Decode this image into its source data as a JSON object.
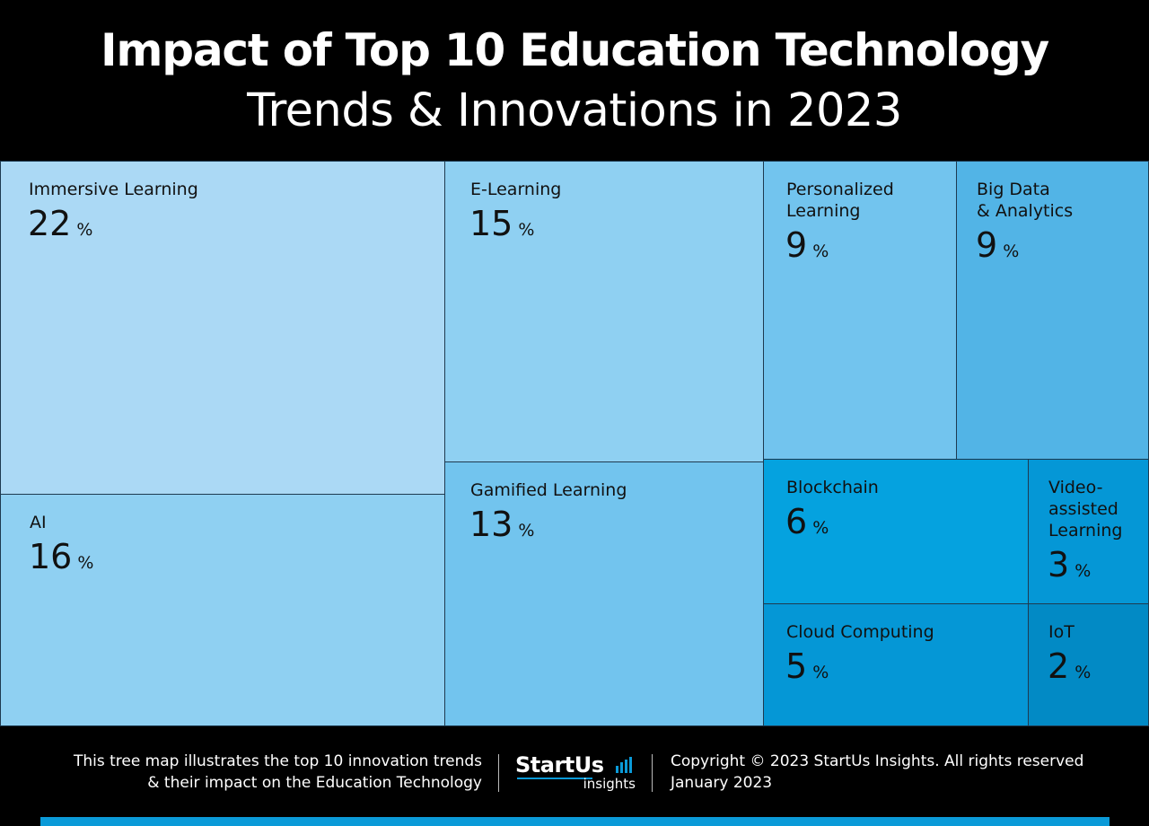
{
  "header": {
    "title_line1": "Impact of Top 10 Education Technology",
    "title_line2": "Trends & Innovations in 2023"
  },
  "chart_data": {
    "type": "treemap",
    "title": "Impact of Top 10 Education Technology Trends & Innovations in 2023",
    "unit": "%",
    "items": [
      {
        "name": "Immersive Learning",
        "label": "Immersive Learning",
        "value": 22,
        "color": "#abd9f5"
      },
      {
        "name": "AI",
        "label": "AI",
        "value": 16,
        "color": "#8fd0f2"
      },
      {
        "name": "E-Learning",
        "label": "E-Learning",
        "value": 15,
        "color": "#8fd0f2"
      },
      {
        "name": "Gamified Learning",
        "label": "Gamified Learning",
        "value": 13,
        "color": "#72c4ee"
      },
      {
        "name": "Personalized Learning",
        "label": "Personalized\nLearning",
        "value": 9,
        "color": "#72c4ee"
      },
      {
        "name": "Big Data & Analytics",
        "label": "Big Data\n& Analytics",
        "value": 9,
        "color": "#52b4e6"
      },
      {
        "name": "Blockchain",
        "label": "Blockchain",
        "value": 6,
        "color": "#05a2df"
      },
      {
        "name": "Video-assisted Learning",
        "label": "Video-\nassisted\nLearning",
        "value": 3,
        "color": "#0597d6"
      },
      {
        "name": "Cloud Computing",
        "label": "Cloud Computing",
        "value": 5,
        "color": "#0597d6"
      },
      {
        "name": "IoT",
        "label": "IoT",
        "value": 2,
        "color": "#028ac5"
      }
    ]
  },
  "footer": {
    "description_line1": "This tree map illustrates the top 10 innovation trends",
    "description_line2": "& their impact on the Education Technology",
    "logo_main": "StartUs",
    "logo_sub": "insights",
    "copyright": "Copyright © 2023 StartUs Insights. All rights reserved",
    "date": "January 2023",
    "accent_color": "#0a9ad8"
  }
}
